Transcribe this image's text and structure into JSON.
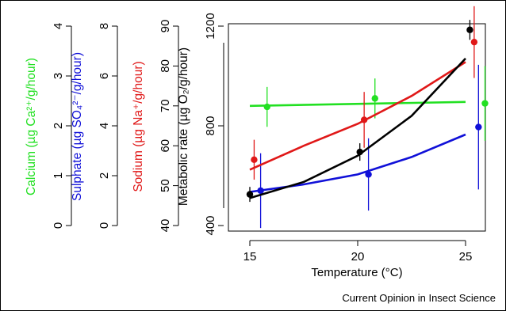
{
  "chart_data": {
    "type": "scatter",
    "caption": "Current Opinion in Insect Science",
    "xaxis": {
      "label": "Temperature (°C)",
      "ticks": [
        15,
        20,
        25
      ],
      "range": [
        15,
        25
      ]
    },
    "yaxes": [
      {
        "key": "calcium",
        "label": "Calcium (µg Ca²⁺/g/hour)",
        "color": "#22e022",
        "range": [
          0,
          4
        ],
        "ticks": [
          0,
          1,
          2,
          3,
          4
        ]
      },
      {
        "key": "sulphate",
        "label": "Sulphate (µg SO₄²⁻/g/hour)",
        "color": "#1010d8",
        "range": [
          0,
          8
        ],
        "ticks": [
          0,
          2,
          4,
          6,
          8
        ]
      },
      {
        "key": "sodium",
        "label": "Sodium (µg Na⁺/g/hour)",
        "color": "#e01818",
        "range": [
          40,
          90
        ],
        "ticks": [
          40,
          50,
          60,
          70,
          80,
          90
        ]
      },
      {
        "key": "metabolic",
        "label": "Metabolic rate (µg O₂/g/hour)",
        "color": "#000000",
        "range": [
          400,
          1200
        ],
        "ticks": [
          400,
          800,
          1200
        ]
      }
    ],
    "series": [
      {
        "axis": "calcium",
        "color": "#22e022",
        "points": [
          {
            "x": 15.8,
            "y": 2.38,
            "err": 0.4
          },
          {
            "x": 20.8,
            "y": 2.55,
            "err": 0.4
          },
          {
            "x": 25.9,
            "y": 2.45,
            "err": 0.75
          }
        ],
        "fit": [
          [
            15,
            2.4
          ],
          [
            25,
            2.48
          ]
        ]
      },
      {
        "axis": "sulphate",
        "color": "#1010d8",
        "points": [
          {
            "x": 15.5,
            "y": 1.4,
            "err": 1.5
          },
          {
            "x": 20.5,
            "y": 2.05,
            "err": 1.45
          },
          {
            "x": 25.6,
            "y": 3.95,
            "err": 2.5
          }
        ],
        "fit": [
          [
            15,
            1.35
          ],
          [
            17.5,
            1.65
          ],
          [
            20,
            2.05
          ],
          [
            22.5,
            2.75
          ],
          [
            25,
            3.65
          ]
        ]
      },
      {
        "axis": "sodium",
        "color": "#e01818",
        "points": [
          {
            "x": 15.2,
            "y": 56.5,
            "err": 5
          },
          {
            "x": 20.3,
            "y": 66.5,
            "err": 7
          },
          {
            "x": 25.4,
            "y": 86,
            "err": 9
          }
        ],
        "fit": [
          [
            15,
            54
          ],
          [
            17.5,
            60
          ],
          [
            20,
            65.5
          ],
          [
            22.5,
            72.5
          ],
          [
            25,
            81
          ]
        ]
      },
      {
        "axis": "metabolic",
        "color": "#000000",
        "points": [
          {
            "x": 15.0,
            "y": 525,
            "err": 30
          },
          {
            "x": 20.1,
            "y": 695,
            "err": 35
          },
          {
            "x": 25.2,
            "y": 1185,
            "err": 40
          }
        ],
        "fit": [
          [
            15,
            510
          ],
          [
            17.5,
            575
          ],
          [
            20,
            680
          ],
          [
            22.5,
            840
          ],
          [
            25,
            1070
          ]
        ]
      }
    ]
  }
}
